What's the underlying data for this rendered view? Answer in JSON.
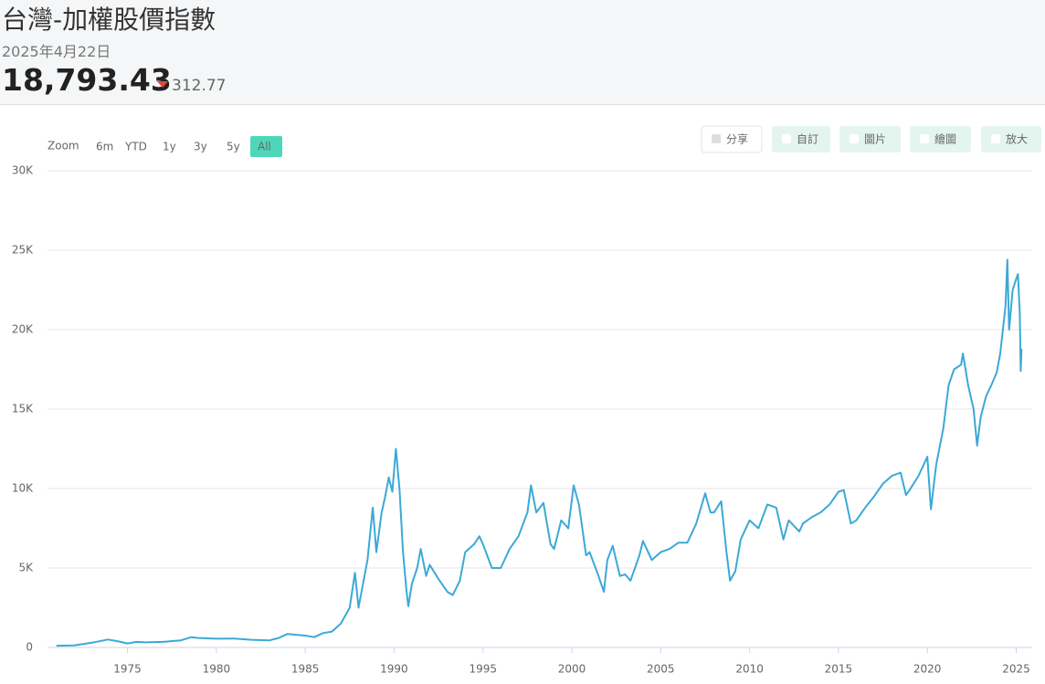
{
  "header": {
    "title": "台灣-加權股價指數",
    "date": "2025年4月22日",
    "price": "18,793.43",
    "change": "312.77"
  },
  "range_selector": {
    "label": "Zoom",
    "buttons": [
      "6m",
      "YTD",
      "1y",
      "3y",
      "5y",
      "All"
    ],
    "selected": 5
  },
  "toolbar": [
    "分享",
    "自訂",
    "圖片",
    "繪圖",
    "放大"
  ],
  "chart_data": {
    "type": "line",
    "color": "#3ba9d6",
    "grid": true,
    "xlim": [
      1970.5,
      2025.9
    ],
    "xticks": [
      1975,
      1980,
      1985,
      1990,
      1995,
      2000,
      2005,
      2010,
      2015,
      2020,
      2025
    ],
    "ylim": [
      0,
      30000
    ],
    "yticks": [
      0,
      {
        "value": 5000,
        "label": "5K"
      },
      {
        "value": 10000,
        "label": "10K"
      },
      {
        "value": 15000,
        "label": "15K"
      },
      {
        "value": 20000,
        "label": "20K"
      },
      {
        "value": 25000,
        "label": "25K"
      },
      {
        "value": 30000,
        "label": "30K"
      }
    ],
    "x": [
      1971.0,
      1972,
      1973,
      1973.9,
      1974.5,
      1975,
      1975.5,
      1976,
      1977,
      1978,
      1978.6,
      1979,
      1980,
      1981,
      1982,
      1983,
      1983.5,
      1984,
      1985,
      1985.5,
      1986,
      1986.5,
      1987,
      1987.5,
      1987.8,
      1988,
      1988.5,
      1988.8,
      1989,
      1989.3,
      1989.5,
      1989.7,
      1989.9,
      1990.1,
      1990.3,
      1990.5,
      1990.7,
      1990.8,
      1991,
      1991.3,
      1991.5,
      1991.8,
      1992,
      1992.5,
      1993,
      1993.3,
      1993.7,
      1994,
      1994.5,
      1994.8,
      1995,
      1995.5,
      1996,
      1996.5,
      1997,
      1997.5,
      1997.7,
      1998,
      1998.4,
      1998.8,
      1999,
      1999.4,
      1999.8,
      2000.1,
      2000.4,
      2000.8,
      2001,
      2001.5,
      2001.8,
      2002,
      2002.3,
      2002.7,
      2003,
      2003.3,
      2003.8,
      2004,
      2004.5,
      2005,
      2005.5,
      2006,
      2006.5,
      2007,
      2007.5,
      2007.8,
      2008,
      2008.4,
      2008.7,
      2008.9,
      2009.2,
      2009.5,
      2010,
      2010.5,
      2011,
      2011.5,
      2011.9,
      2012.2,
      2012.8,
      2013,
      2013.5,
      2014,
      2014.5,
      2015,
      2015.3,
      2015.7,
      2016,
      2016.5,
      2017,
      2017.5,
      2018,
      2018.5,
      2018.8,
      2019,
      2019.5,
      2020,
      2020.2,
      2020.5,
      2020.9,
      2021.2,
      2021.5,
      2021.9,
      2022,
      2022.3,
      2022.6,
      2022.8,
      2023,
      2023.3,
      2023.6,
      2023.9,
      2024.1,
      2024.4,
      2024.5,
      2024.6,
      2024.8,
      2025,
      2025.1,
      2025.2,
      2025.25,
      2025.3
    ],
    "values": [
      110,
      130,
      300,
      500,
      380,
      250,
      350,
      320,
      350,
      450,
      650,
      600,
      550,
      560,
      480,
      450,
      600,
      850,
      750,
      650,
      900,
      1000,
      1500,
      2500,
      4700,
      2500,
      5500,
      8800,
      6000,
      8500,
      9500,
      10700,
      9800,
      12500,
      10000,
      6000,
      3500,
      2600,
      4000,
      5000,
      6200,
      4500,
      5200,
      4300,
      3500,
      3300,
      4200,
      6000,
      6500,
      7000,
      6500,
      5000,
      5000,
      6200,
      7000,
      8500,
      10200,
      8500,
      9100,
      6500,
      6200,
      8000,
      7500,
      10200,
      9000,
      5800,
      6000,
      4500,
      3500,
      5500,
      6400,
      4500,
      4600,
      4200,
      5800,
      6700,
      5500,
      6000,
      6200,
      6600,
      6600,
      7800,
      9700,
      8500,
      8500,
      9200,
      6000,
      4200,
      4800,
      6800,
      8000,
      7500,
      9000,
      8800,
      6800,
      8000,
      7300,
      7800,
      8200,
      8500,
      9000,
      9800,
      9900,
      7800,
      8000,
      8800,
      9500,
      10300,
      10800,
      11000,
      9600,
      9900,
      10800,
      12000,
      8700,
      11500,
      13800,
      16500,
      17500,
      17800,
      18500,
      16500,
      15000,
      12700,
      14500,
      15800,
      16500,
      17300,
      18500,
      21500,
      24400,
      20000,
      22500,
      23200,
      23500,
      21000,
      17400,
      18793.43
    ]
  }
}
